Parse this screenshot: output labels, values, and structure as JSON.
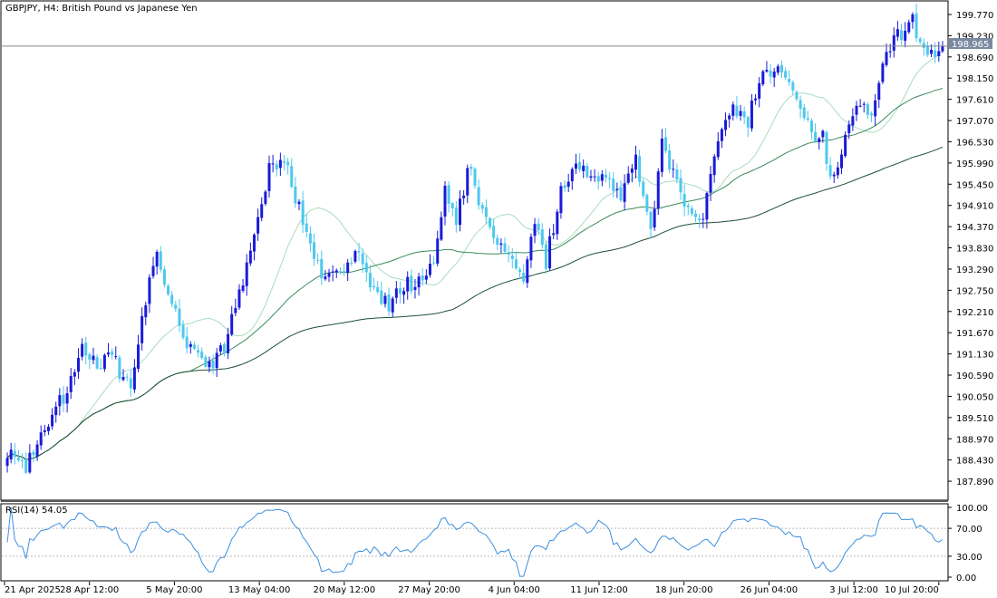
{
  "header": {
    "title": "GBPJPY, H4:  British Pound vs Japanese Yen",
    "rsi_label": "RSI(14) 54.05",
    "price_tag": "198.965"
  },
  "colors": {
    "bull": "#1a1ad8",
    "bear": "#4dc8ee",
    "ma_fast": "#a8dcc0",
    "ma_mid": "#3a8a5a",
    "ma_slow": "#1f4f33",
    "rsi": "#3d8fe0",
    "hline": "#888888",
    "frame": "#000000",
    "tag_bg": "#7a8aa0"
  },
  "chart_data": {
    "type": "candlestick",
    "symbol": "GBPJPY",
    "timeframe": "H4",
    "price_axis": {
      "ticks": [
        "199.770",
        "199.230",
        "198.690",
        "198.150",
        "197.610",
        "197.070",
        "196.530",
        "195.990",
        "195.450",
        "194.910",
        "194.370",
        "193.830",
        "193.290",
        "192.750",
        "192.210",
        "191.670",
        "191.130",
        "190.590",
        "190.050",
        "189.510",
        "188.970",
        "188.430",
        "187.890"
      ],
      "min": 187.5,
      "max": 200.0
    },
    "current_price": 198.965,
    "time_axis": {
      "labels": [
        "21 Apr 2025",
        "28 Apr 12:00",
        "5 May 20:00",
        "13 May 04:00",
        "20 May 12:00",
        "27 May 20:00",
        "4 Jun 04:00",
        "11 Jun 12:00",
        "18 Jun 20:00",
        "26 Jun 04:00",
        "3 Jul 12:00",
        "10 Jul 20:00"
      ]
    },
    "price_anchors": [
      [
        0,
        188.7
      ],
      [
        5,
        188.2
      ],
      [
        10,
        189.3
      ],
      [
        16,
        190.2
      ],
      [
        20,
        191.2
      ],
      [
        24,
        190.9
      ],
      [
        28,
        191.0
      ],
      [
        33,
        190.3
      ],
      [
        37,
        192.5
      ],
      [
        40,
        193.7
      ],
      [
        44,
        192.4
      ],
      [
        48,
        191.3
      ],
      [
        54,
        190.8
      ],
      [
        58,
        191.3
      ],
      [
        62,
        192.6
      ],
      [
        66,
        194.3
      ],
      [
        70,
        195.8
      ],
      [
        74,
        196.1
      ],
      [
        78,
        194.8
      ],
      [
        82,
        193.4
      ],
      [
        86,
        193.0
      ],
      [
        90,
        193.4
      ],
      [
        94,
        193.6
      ],
      [
        98,
        192.8
      ],
      [
        102,
        192.3
      ],
      [
        106,
        192.9
      ],
      [
        110,
        193.0
      ],
      [
        114,
        193.6
      ],
      [
        117,
        195.4
      ],
      [
        120,
        194.6
      ],
      [
        124,
        196.0
      ],
      [
        127,
        194.7
      ],
      [
        130,
        193.9
      ],
      [
        134,
        193.6
      ],
      [
        138,
        193.1
      ],
      [
        141,
        194.6
      ],
      [
        144,
        193.5
      ],
      [
        148,
        195.2
      ],
      [
        152,
        195.9
      ],
      [
        156,
        195.6
      ],
      [
        160,
        195.7
      ],
      [
        164,
        195.0
      ],
      [
        168,
        196.2
      ],
      [
        172,
        194.3
      ],
      [
        175,
        196.4
      ],
      [
        179,
        195.4
      ],
      [
        182,
        194.7
      ],
      [
        186,
        194.7
      ],
      [
        190,
        196.5
      ],
      [
        194,
        197.5
      ],
      [
        198,
        197.1
      ],
      [
        202,
        198.5
      ],
      [
        206,
        198.3
      ],
      [
        210,
        198.0
      ],
      [
        214,
        196.9
      ],
      [
        218,
        196.6
      ],
      [
        220,
        195.5
      ],
      [
        224,
        196.7
      ],
      [
        228,
        197.5
      ],
      [
        231,
        197.0
      ],
      [
        235,
        198.8
      ],
      [
        239,
        199.3
      ],
      [
        242,
        199.6
      ],
      [
        245,
        198.9
      ],
      [
        248,
        198.7
      ],
      [
        250,
        198.97
      ]
    ],
    "rsi": {
      "period": 14,
      "last_value": 54.05,
      "axis_ticks": [
        "100.00",
        "70.00",
        "30.00",
        "0.00"
      ],
      "levels": [
        70,
        30
      ],
      "range": [
        0,
        100
      ]
    },
    "moving_averages": [
      {
        "color_key": "ma_fast"
      },
      {
        "color_key": "ma_mid"
      },
      {
        "color_key": "ma_slow"
      }
    ]
  }
}
